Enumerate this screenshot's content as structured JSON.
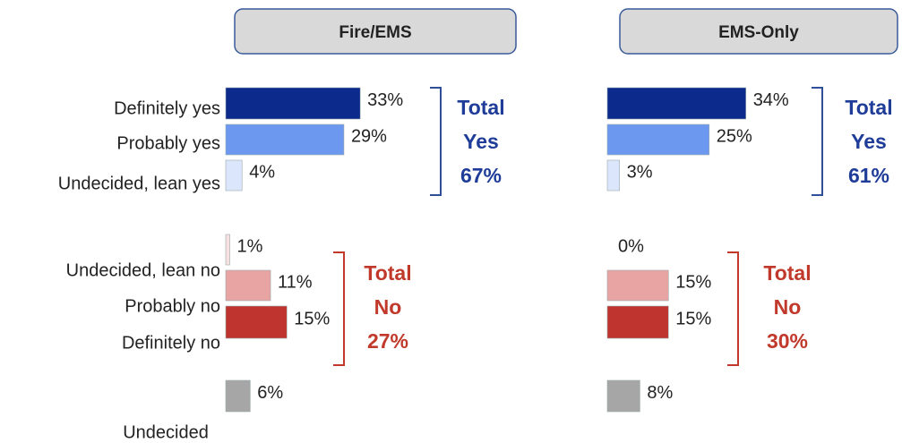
{
  "chart_data": [
    {
      "type": "bar",
      "title": "Fire/EMS",
      "categories": [
        "Definitely yes",
        "Probably yes",
        "Undecided, lean yes",
        "Undecided, lean no",
        "Probably no",
        "Definitely no",
        "Undecided"
      ],
      "values": [
        33,
        29,
        4,
        1,
        11,
        15,
        6
      ],
      "value_labels": [
        "33%",
        "29%",
        "4%",
        "1%",
        "11%",
        "15%",
        "6%"
      ],
      "colors": [
        "#0c2a8c",
        "#6d98ef",
        "#dbe5fb",
        "#f7e1e1",
        "#e8a3a3",
        "#c0342f",
        "#a6a6a6"
      ],
      "annotations": [
        "Total",
        "Yes",
        "67%",
        "Total",
        "No",
        "27%"
      ]
    },
    {
      "type": "bar",
      "title": "EMS-Only",
      "values": [
        34,
        25,
        3,
        0,
        15,
        15,
        8
      ],
      "value_labels": [
        "34%",
        "25%",
        "3%",
        "0%",
        "15%",
        "15%",
        "8%"
      ],
      "colors": [
        "#0c2a8c",
        "#6d98ef",
        "#dbe5fb",
        "#f7e1e1",
        "#e8a3a3",
        "#c0342f",
        "#a6a6a6"
      ],
      "annotations": [
        "Total",
        "Yes",
        "61%",
        "Total",
        "No",
        "30%"
      ]
    }
  ]
}
